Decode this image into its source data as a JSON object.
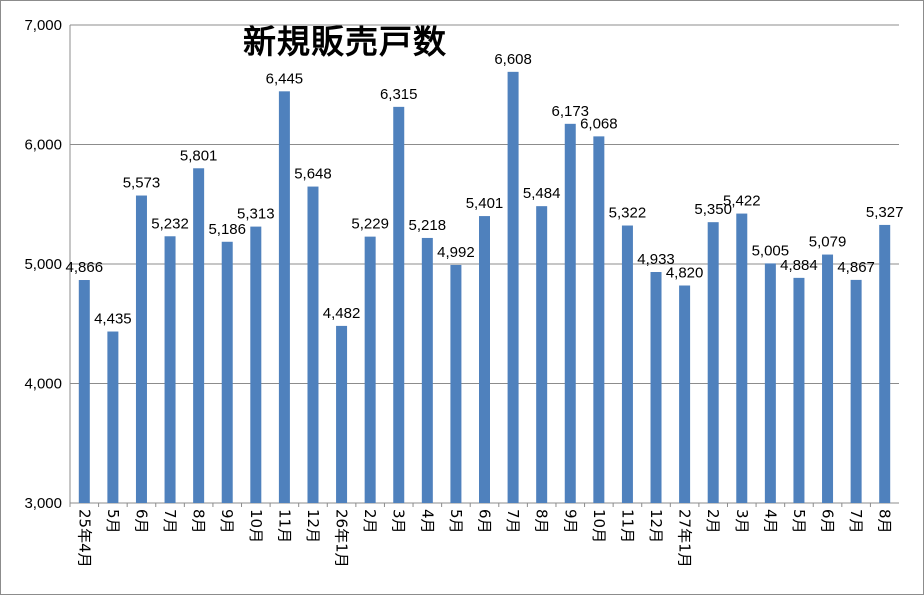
{
  "chart_data": {
    "type": "bar",
    "title": "新規販売戸数",
    "xlabel": "",
    "ylabel": "",
    "ylim": [
      3000,
      7000
    ],
    "yticks": [
      3000,
      4000,
      5000,
      6000,
      7000
    ],
    "ytick_labels": [
      "3,000",
      "4,000",
      "5,000",
      "6,000",
      "7,000"
    ],
    "grid": "horizontal",
    "legend": "none",
    "bar_color": "#4F81BD",
    "grid_color": "#8C8C8C",
    "categories": [
      "25年4月",
      "5月",
      "6月",
      "7月",
      "8月",
      "9月",
      "10月",
      "11月",
      "12月",
      "26年1月",
      "2月",
      "3月",
      "4月",
      "5月",
      "6月",
      "7月",
      "8月",
      "9月",
      "10月",
      "11月",
      "12月",
      "27年1月",
      "2月",
      "3月",
      "4月",
      "5月",
      "6月",
      "7月",
      "8月"
    ],
    "values": [
      4866,
      4435,
      5573,
      5232,
      5801,
      5186,
      5313,
      6445,
      5648,
      4482,
      5229,
      6315,
      5218,
      4992,
      5401,
      6608,
      5484,
      6173,
      6068,
      5322,
      4933,
      4820,
      5350,
      5422,
      5005,
      4884,
      5079,
      4867,
      5327
    ],
    "data_labels": [
      "4,866",
      "4,435",
      "5,573",
      "5,232",
      "5,801",
      "5,186",
      "5,313",
      "6,445",
      "5,648",
      "4,482",
      "5,229",
      "6,315",
      "5,218",
      "4,992",
      "5,401",
      "6,608",
      "5,484",
      "6,173",
      "6,068",
      "5,322",
      "4,933",
      "4,820",
      "5,350",
      "5,422",
      "5,005",
      "4,884",
      "5,079",
      "4,867",
      "5,327"
    ]
  }
}
